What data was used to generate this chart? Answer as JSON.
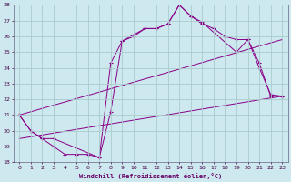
{
  "xlabel": "Windchill (Refroidissement éolien,°C)",
  "bg_color": "#cde8ee",
  "grid_color": "#aacccc",
  "line_color": "#880088",
  "xlim": [
    -0.5,
    23.5
  ],
  "ylim": [
    18,
    28
  ],
  "xticks": [
    0,
    1,
    2,
    3,
    4,
    5,
    6,
    7,
    8,
    9,
    10,
    11,
    12,
    13,
    14,
    15,
    16,
    17,
    18,
    19,
    20,
    21,
    22,
    23
  ],
  "yticks": [
    18,
    19,
    20,
    21,
    22,
    23,
    24,
    25,
    26,
    27,
    28
  ],
  "series1_x": [
    0,
    1,
    2,
    3,
    4,
    5,
    6,
    7,
    8,
    9,
    10,
    11,
    12,
    13,
    14,
    15,
    16,
    17,
    18,
    19,
    20,
    21,
    22,
    23
  ],
  "series1_y": [
    21.0,
    20.0,
    19.5,
    19.0,
    18.5,
    18.5,
    18.5,
    18.3,
    21.2,
    25.7,
    26.0,
    26.5,
    26.5,
    26.8,
    28.0,
    27.3,
    26.8,
    26.5,
    26.0,
    25.8,
    25.8,
    24.0,
    22.3,
    22.2
  ],
  "series2_x": [
    0,
    1,
    2,
    3,
    7,
    8,
    9,
    10,
    11,
    12,
    13,
    14,
    15,
    16,
    19,
    20,
    21,
    22,
    23
  ],
  "series2_y": [
    21.0,
    20.0,
    19.5,
    19.5,
    18.3,
    24.3,
    25.7,
    26.1,
    26.5,
    26.5,
    26.8,
    28.0,
    27.3,
    26.9,
    25.0,
    25.8,
    24.3,
    22.2,
    22.2
  ],
  "series3_x": [
    0,
    23
  ],
  "series3_y": [
    19.5,
    22.2
  ],
  "series4_x": [
    0,
    23
  ],
  "series4_y": [
    21.0,
    25.8
  ]
}
